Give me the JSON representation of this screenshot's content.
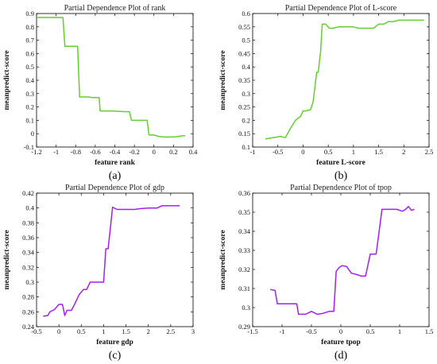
{
  "chart_data": [
    {
      "id": "a",
      "type": "line",
      "title": "Partial Dependence Plot of rank",
      "xlabel": "feature rank",
      "ylabel": "meanpredict-score",
      "panel_label": "(a)",
      "color": "#66cc33",
      "grid": false,
      "xlim": [
        -1.2,
        0.4
      ],
      "ylim": [
        -0.1,
        0.9
      ],
      "xticks": [
        -1.2,
        -1,
        -0.8,
        -0.6,
        -0.4,
        -0.2,
        0,
        0.2,
        0.4
      ],
      "xtick_labels": [
        "-1.2",
        "-1",
        "-0.8",
        "-0.6",
        "-0.4",
        "-0.2",
        "0",
        "0.2",
        "0.4"
      ],
      "yticks": [
        -0.1,
        0,
        0.1,
        0.2,
        0.3,
        0.4,
        0.5,
        0.6,
        0.7,
        0.8,
        0.9
      ],
      "ytick_labels": [
        "-0.1",
        "0",
        "0.1",
        "0.2",
        "0.3",
        "0.4",
        "0.5",
        "0.6",
        "0.7",
        "0.8",
        "0.9"
      ],
      "x": [
        -1.2,
        -0.93,
        -0.91,
        -0.78,
        -0.76,
        -0.66,
        -0.63,
        -0.56,
        -0.55,
        -0.43,
        -0.3,
        -0.25,
        -0.23,
        -0.07,
        -0.05,
        0.0,
        0.05,
        0.1,
        0.2,
        0.25,
        0.3,
        0.32
      ],
      "y": [
        0.87,
        0.87,
        0.655,
        0.655,
        0.275,
        0.275,
        0.27,
        0.27,
        0.17,
        0.17,
        0.165,
        0.165,
        0.1,
        0.1,
        -0.01,
        -0.01,
        -0.02,
        -0.025,
        -0.025,
        -0.02,
        -0.015,
        -0.015
      ]
    },
    {
      "id": "b",
      "type": "line",
      "title": "Partial Dependence Plot of L-score",
      "xlabel": "feature L-score",
      "ylabel": "meanpredict-score",
      "panel_label": "(b)",
      "color": "#66cc33",
      "grid": false,
      "xlim": [
        -1,
        2.5
      ],
      "ylim": [
        0.1,
        0.6
      ],
      "xticks": [
        -1,
        -0.5,
        0,
        0.5,
        1,
        1.5,
        2,
        2.5
      ],
      "xtick_labels": [
        "-1",
        "-0.5",
        "0",
        "0.5",
        "1",
        "1.5",
        "2",
        "2.5"
      ],
      "yticks": [
        0.1,
        0.15,
        0.2,
        0.25,
        0.3,
        0.35,
        0.4,
        0.45,
        0.5,
        0.55,
        0.6
      ],
      "ytick_labels": [
        "0.1",
        "0.15",
        "0.2",
        "0.25",
        "0.3",
        "0.35",
        "0.4",
        "0.45",
        "0.5",
        "0.55",
        "0.6"
      ],
      "x": [
        -0.75,
        -0.6,
        -0.45,
        -0.35,
        -0.25,
        -0.15,
        -0.05,
        0.0,
        0.05,
        0.15,
        0.2,
        0.27,
        0.3,
        0.35,
        0.38,
        0.45,
        0.52,
        0.6,
        0.7,
        0.8,
        0.9,
        1.0,
        1.1,
        1.2,
        1.3,
        1.4,
        1.5,
        1.6,
        1.7,
        1.8,
        1.9,
        2.0,
        2.1,
        2.2,
        2.3,
        2.4
      ],
      "y": [
        0.13,
        0.135,
        0.14,
        0.135,
        0.17,
        0.2,
        0.215,
        0.235,
        0.235,
        0.24,
        0.27,
        0.38,
        0.38,
        0.46,
        0.56,
        0.56,
        0.545,
        0.545,
        0.55,
        0.55,
        0.55,
        0.55,
        0.545,
        0.545,
        0.545,
        0.545,
        0.56,
        0.56,
        0.57,
        0.57,
        0.575,
        0.575,
        0.575,
        0.575,
        0.575,
        0.575
      ]
    },
    {
      "id": "c",
      "type": "line",
      "title": "Partial Dependence Plot of gdp",
      "xlabel": "feature gdp",
      "ylabel": "meanpredict-score",
      "panel_label": "(c)",
      "color": "#a020f0",
      "grid": false,
      "xlim": [
        -0.5,
        3
      ],
      "ylim": [
        0.24,
        0.42
      ],
      "xticks": [
        -0.5,
        0,
        0.5,
        1,
        1.5,
        2,
        2.5,
        3
      ],
      "xtick_labels": [
        "-0.5",
        "0",
        "0.5",
        "1",
        "1.5",
        "2",
        "2.5",
        "3"
      ],
      "yticks": [
        0.24,
        0.26,
        0.28,
        0.3,
        0.32,
        0.34,
        0.36,
        0.38,
        0.4,
        0.42
      ],
      "ytick_labels": [
        "0.24",
        "0.26",
        "0.28",
        "0.3",
        "0.32",
        "0.34",
        "0.36",
        "0.38",
        "0.4",
        "0.42"
      ],
      "x": [
        -0.35,
        -0.25,
        -0.2,
        -0.1,
        0.0,
        0.08,
        0.13,
        0.18,
        0.28,
        0.35,
        0.45,
        0.55,
        0.62,
        0.7,
        0.8,
        0.9,
        1.0,
        1.05,
        1.1,
        1.2,
        1.3,
        1.5,
        1.7,
        1.8,
        2.0,
        2.2,
        2.3,
        2.6,
        2.7
      ],
      "y": [
        0.254,
        0.255,
        0.26,
        0.263,
        0.27,
        0.27,
        0.255,
        0.262,
        0.262,
        0.27,
        0.283,
        0.29,
        0.29,
        0.3,
        0.3,
        0.3,
        0.3,
        0.345,
        0.345,
        0.401,
        0.398,
        0.398,
        0.398,
        0.399,
        0.4,
        0.4,
        0.403,
        0.403,
        0.403
      ]
    },
    {
      "id": "d",
      "type": "line",
      "title": "Partial Dependence Plot of tpop",
      "xlabel": "feature tpop",
      "ylabel": "meanpredict-score",
      "panel_label": "(d)",
      "color": "#a020f0",
      "grid": false,
      "xlim": [
        -1.5,
        1.5
      ],
      "ylim": [
        0.29,
        0.36
      ],
      "xticks": [
        -1.5,
        -1,
        -0.5,
        0,
        0.5,
        1,
        1.5
      ],
      "xtick_labels": [
        "-1.5",
        "-1",
        "-0.5",
        "0",
        "0.5",
        "1",
        "1.5"
      ],
      "yticks": [
        0.29,
        0.3,
        0.31,
        0.32,
        0.33,
        0.34,
        0.35,
        0.36
      ],
      "ytick_labels": [
        "0.29",
        "0.3",
        "0.31",
        "0.32",
        "0.33",
        "0.34",
        "0.35",
        "0.36"
      ],
      "x": [
        -1.2,
        -1.12,
        -1.08,
        -0.75,
        -0.72,
        -0.6,
        -0.5,
        -0.4,
        -0.3,
        -0.2,
        -0.12,
        -0.08,
        -0.03,
        0.02,
        0.1,
        0.18,
        0.25,
        0.35,
        0.42,
        0.5,
        0.6,
        0.7,
        0.8,
        0.95,
        1.05,
        1.1,
        1.15,
        1.2,
        1.25
      ],
      "y": [
        0.3095,
        0.309,
        0.302,
        0.302,
        0.2965,
        0.2965,
        0.298,
        0.2965,
        0.297,
        0.298,
        0.298,
        0.319,
        0.321,
        0.322,
        0.3215,
        0.318,
        0.3175,
        0.3165,
        0.3165,
        0.328,
        0.328,
        0.3515,
        0.3515,
        0.3515,
        0.3505,
        0.3515,
        0.353,
        0.351,
        0.3515
      ]
    }
  ]
}
